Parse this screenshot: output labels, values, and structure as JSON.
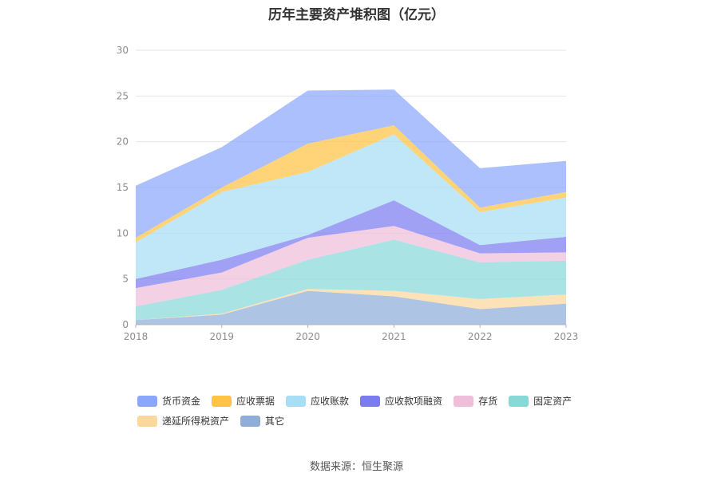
{
  "chart_data": {
    "type": "area",
    "stacked": true,
    "title": "历年主要资产堆积图（亿元）",
    "x": [
      "2018",
      "2019",
      "2020",
      "2021",
      "2022",
      "2023"
    ],
    "ylim": [
      0,
      30
    ],
    "yticks": [
      "0",
      "5",
      "10",
      "15",
      "20",
      "25",
      "30"
    ],
    "grid": true,
    "legend_position": "bottom",
    "series": [
      {
        "name": "其它",
        "color": "#8fadd9",
        "values": [
          0.5,
          1.1,
          3.7,
          3.1,
          1.7,
          2.3
        ]
      },
      {
        "name": "递延所得税资产",
        "color": "#fdd79b",
        "values": [
          0.0,
          0.1,
          0.2,
          0.6,
          1.1,
          1.0
        ]
      },
      {
        "name": "固定资产",
        "color": "#88d8d8",
        "values": [
          1.5,
          2.6,
          3.2,
          5.6,
          4.0,
          3.7
        ]
      },
      {
        "name": "存货",
        "color": "#f0bedb",
        "values": [
          2.0,
          1.9,
          2.4,
          1.5,
          1.0,
          0.9
        ]
      },
      {
        "name": "应收款项融资",
        "color": "#7b7cf0",
        "values": [
          1.0,
          1.4,
          0.3,
          2.8,
          0.9,
          1.7
        ]
      },
      {
        "name": "应收账款",
        "color": "#a8def5",
        "values": [
          4.0,
          7.4,
          6.9,
          7.2,
          3.6,
          4.3
        ]
      },
      {
        "name": "应收票据",
        "color": "#ffc445",
        "values": [
          0.5,
          0.5,
          3.1,
          1.0,
          0.5,
          0.6
        ]
      },
      {
        "name": "货币资金",
        "color": "#8aa7fb",
        "values": [
          5.7,
          4.4,
          5.8,
          3.9,
          4.3,
          3.4
        ]
      }
    ]
  },
  "legend": {
    "items": [
      {
        "label": "货币资金",
        "color": "#8aa7fb"
      },
      {
        "label": "应收票据",
        "color": "#ffc445"
      },
      {
        "label": "应收账款",
        "color": "#a8def5"
      },
      {
        "label": "应收款项融资",
        "color": "#7b7cf0"
      },
      {
        "label": "存货",
        "color": "#f0bedb"
      },
      {
        "label": "固定资产",
        "color": "#88d8d8"
      },
      {
        "label": "递延所得税资产",
        "color": "#fdd79b"
      },
      {
        "label": "其它",
        "color": "#8fadd9"
      }
    ]
  },
  "source_note": "数据来源：恒生聚源"
}
